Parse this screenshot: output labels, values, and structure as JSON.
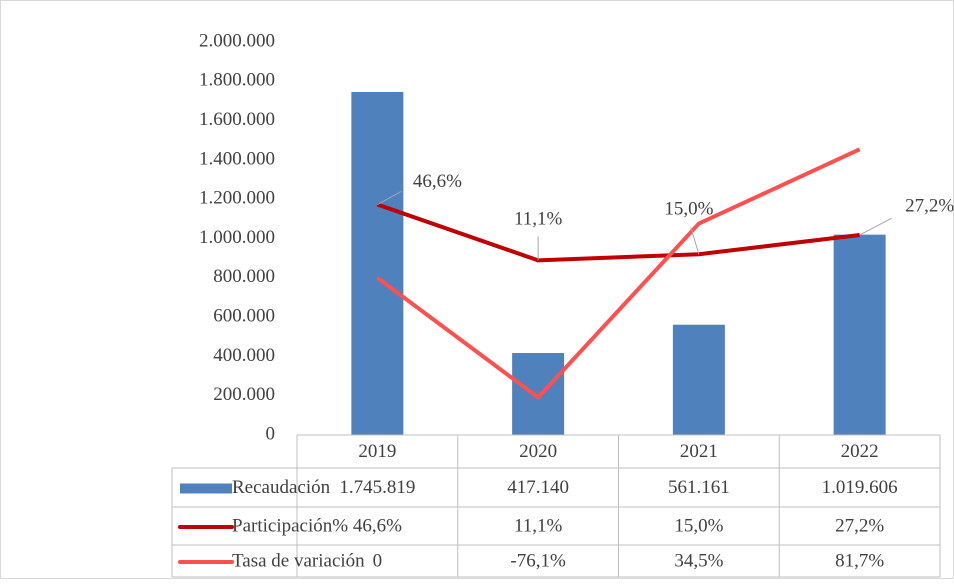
{
  "chart_data": {
    "type": "bar",
    "categories": [
      "2019",
      "2020",
      "2021",
      "2022"
    ],
    "series": [
      {
        "name": "Recaudación",
        "type": "bar",
        "color": "#4f81bd",
        "values": [
          1745819,
          417140,
          561161,
          1019606
        ],
        "value_labels": [
          "1.745.819",
          "417.140",
          "561.161",
          "1.019.606"
        ]
      },
      {
        "name": "Participación%",
        "type": "line",
        "axis": "y2",
        "color": "#c00000",
        "values": [
          46.6,
          11.1,
          15.0,
          27.2
        ],
        "value_labels": [
          "46,6%",
          "11,1%",
          "15,0%",
          "27,2%"
        ]
      },
      {
        "name": "Tasa de variación",
        "type": "line",
        "axis": "y2",
        "color": "#ff5050",
        "values": [
          0,
          -76.1,
          34.5,
          81.7
        ],
        "value_labels": [
          "0",
          "-76,1%",
          "34,5%",
          "81,7%"
        ]
      }
    ],
    "ylim": [
      0,
      2000000
    ],
    "yticks": [
      0,
      {
        "value": 200000,
        "label": "200.000"
      },
      {
        "value": 400000,
        "label": "400.000"
      },
      {
        "value": 600000,
        "label": "600.000"
      },
      {
        "value": 800000,
        "label": "800.000"
      },
      {
        "value": 1000000,
        "label": "1.000.000"
      },
      {
        "value": 1200000,
        "label": "1.200.000"
      },
      {
        "value": 1400000,
        "label": "1.400.000"
      },
      {
        "value": 1600000,
        "label": "1.600.000"
      },
      {
        "value": 1800000,
        "label": "1.800.000"
      },
      {
        "value": 2000000,
        "label": "2.000.000"
      }
    ],
    "y2lim": [
      -100,
      150
    ],
    "grid": false,
    "data_table": true
  }
}
